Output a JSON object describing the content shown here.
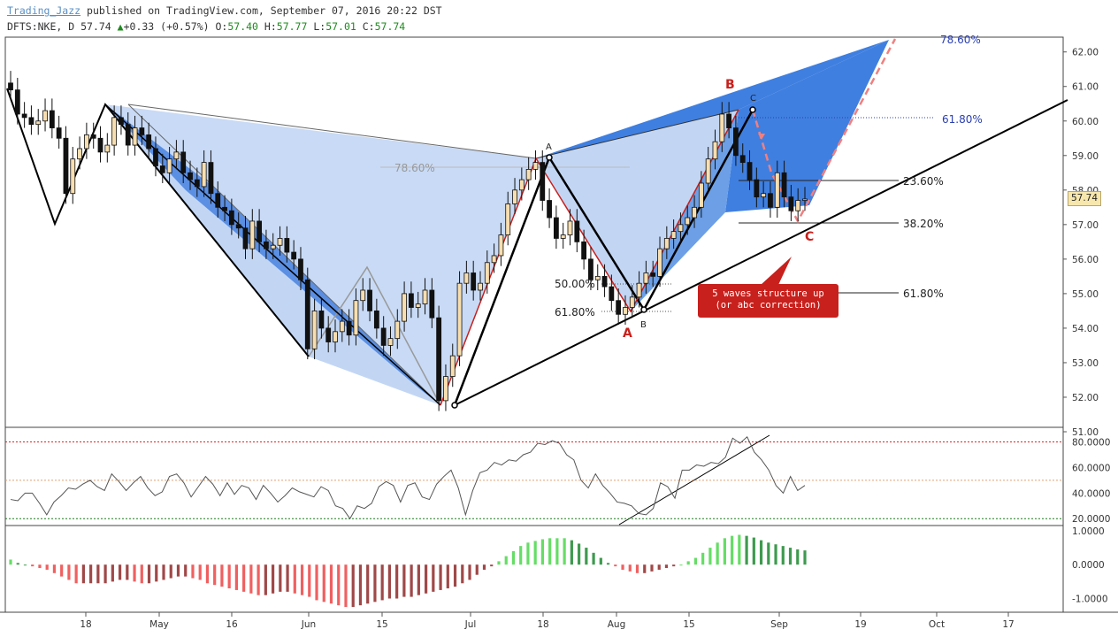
{
  "header": {
    "author": "Trading_Jazz",
    "published_text": " published on TradingView.com, September 07, 2016 20:22 DST",
    "symbol": "DFTS:NKE, D",
    "last": "57.74",
    "change_arrow": "▲",
    "change": "+0.33 (+0.57%)",
    "o_label": "O:",
    "o": "57.40",
    "h_label": "H:",
    "h": "57.77",
    "l_label": "L:",
    "l": "57.01",
    "c_label": "C:",
    "c": "57.74"
  },
  "price_tag": "57.74",
  "callout": {
    "line1": "5 waves structure up",
    "line2": "(or abc correction)"
  },
  "colors": {
    "bull": "#f7deb0",
    "bear": "#111111",
    "pattern_fill": "#bcd2f3",
    "pattern_dark": "#4a86e0",
    "red_leg": "#c8201c"
  },
  "chart_data": [
    {
      "type": "candlestick",
      "title": "",
      "y_ticks": [
        "62.00",
        "61.00",
        "60.00",
        "59.00",
        "58.00",
        "57.00",
        "56.00",
        "55.00",
        "54.00",
        "53.00",
        "52.00",
        "51.00"
      ],
      "x_ticks": [
        "18",
        "May",
        "16",
        "Jun",
        "15",
        "Jul",
        "18",
        "Aug",
        "15",
        "Sep",
        "19",
        "Oct",
        "17"
      ],
      "ylim": [
        51,
        62.3
      ],
      "closes": [
        60.9,
        60.2,
        60.1,
        59.9,
        60.0,
        60.3,
        59.8,
        59.5,
        57.9,
        58.9,
        59.2,
        59.6,
        59.5,
        59.1,
        59.3,
        60.1,
        59.9,
        59.3,
        59.8,
        59.6,
        59.2,
        58.7,
        58.5,
        58.9,
        59.1,
        58.5,
        58.3,
        58.1,
        58.8,
        57.9,
        57.5,
        57.4,
        57.0,
        56.9,
        56.3,
        57.1,
        56.5,
        56.3,
        56.4,
        56.6,
        56.2,
        56.0,
        55.4,
        53.4,
        54.5,
        54.0,
        53.6,
        53.9,
        54.2,
        53.8,
        54.8,
        55.1,
        54.5,
        54.0,
        53.5,
        53.7,
        54.2,
        55.0,
        54.6,
        54.7,
        55.1,
        54.3,
        51.9,
        52.6,
        53.2,
        55.3,
        55.6,
        55.1,
        55.3,
        55.9,
        56.1,
        56.7,
        57.6,
        58.0,
        58.3,
        58.6,
        58.8,
        57.7,
        57.2,
        56.6,
        56.7,
        57.1,
        56.5,
        56.0,
        55.4,
        55.5,
        55.2,
        54.8,
        54.4,
        54.6,
        54.9,
        55.3,
        55.6,
        55.5,
        56.3,
        56.6,
        56.8,
        57.0,
        57.2,
        57.5,
        58.2,
        58.9,
        59.4,
        60.2,
        59.8,
        59.0,
        58.8,
        58.3,
        57.8,
        57.9,
        57.5,
        58.5,
        57.8,
        57.4,
        57.7,
        57.74
      ],
      "annotations": [
        "A",
        "B",
        "C",
        "A",
        "B",
        "C",
        "78.60%",
        "78.60%",
        "61.80%",
        "23.60%",
        "38.20%",
        "61.80%",
        "50.00%",
        "61.80%"
      ]
    },
    {
      "type": "line",
      "title": "",
      "y_ticks": [
        "80.0000",
        "60.0000",
        "40.0000",
        "20.0000"
      ],
      "ylim": [
        16,
        88
      ],
      "levels": [
        80,
        50,
        20
      ],
      "values": [
        35,
        34,
        40,
        40,
        32,
        23,
        33,
        38,
        44,
        43,
        47,
        50,
        45,
        42,
        55,
        49,
        42,
        48,
        53,
        44,
        38,
        41,
        53,
        55,
        48,
        37,
        45,
        53,
        47,
        38,
        48,
        39,
        46,
        44,
        35,
        46,
        40,
        33,
        38,
        44,
        41,
        39,
        37,
        45,
        42,
        30,
        28,
        20,
        30,
        28,
        32,
        45,
        49,
        46,
        33,
        46,
        48,
        37,
        35,
        47,
        53,
        58,
        44,
        23,
        42,
        56,
        58,
        64,
        62,
        66,
        65,
        70,
        72,
        79,
        78,
        81,
        79,
        70,
        66,
        50,
        44,
        55,
        46,
        40,
        33,
        32,
        30,
        24,
        23,
        28,
        48,
        45,
        36,
        58,
        58,
        62,
        61,
        64,
        63,
        68,
        83,
        79,
        84,
        72,
        66,
        58,
        46,
        40,
        53,
        42,
        46
      ],
      "series": []
    },
    {
      "type": "bar",
      "title": "",
      "y_ticks": [
        "1.0000",
        "0.0000",
        "-1.0000"
      ],
      "ylim": [
        -1.3,
        1.05
      ],
      "values": [
        0.15,
        0.05,
        0.0,
        -0.05,
        -0.1,
        -0.15,
        -0.25,
        -0.35,
        -0.45,
        -0.55,
        -0.55,
        -0.55,
        -0.55,
        -0.55,
        -0.5,
        -0.45,
        -0.45,
        -0.5,
        -0.55,
        -0.55,
        -0.5,
        -0.45,
        -0.4,
        -0.35,
        -0.35,
        -0.4,
        -0.45,
        -0.55,
        -0.6,
        -0.65,
        -0.7,
        -0.75,
        -0.8,
        -0.85,
        -0.9,
        -0.9,
        -0.85,
        -0.8,
        -0.8,
        -0.85,
        -0.9,
        -0.95,
        -1.05,
        -1.1,
        -1.15,
        -1.2,
        -1.25,
        -1.25,
        -1.2,
        -1.15,
        -1.1,
        -1.05,
        -1.0,
        -1.0,
        -0.95,
        -0.95,
        -0.9,
        -0.85,
        -0.8,
        -0.75,
        -0.7,
        -0.65,
        -0.55,
        -0.45,
        -0.3,
        -0.15,
        -0.05,
        0.1,
        0.25,
        0.4,
        0.55,
        0.65,
        0.7,
        0.75,
        0.78,
        0.78,
        0.78,
        0.72,
        0.62,
        0.5,
        0.35,
        0.2,
        0.05,
        -0.05,
        -0.15,
        -0.2,
        -0.25,
        -0.25,
        -0.2,
        -0.15,
        -0.1,
        -0.05,
        0.0,
        0.1,
        0.2,
        0.35,
        0.5,
        0.65,
        0.78,
        0.85,
        0.88,
        0.85,
        0.8,
        0.72,
        0.65,
        0.6,
        0.55,
        0.5,
        0.45,
        0.42
      ],
      "series": []
    }
  ]
}
